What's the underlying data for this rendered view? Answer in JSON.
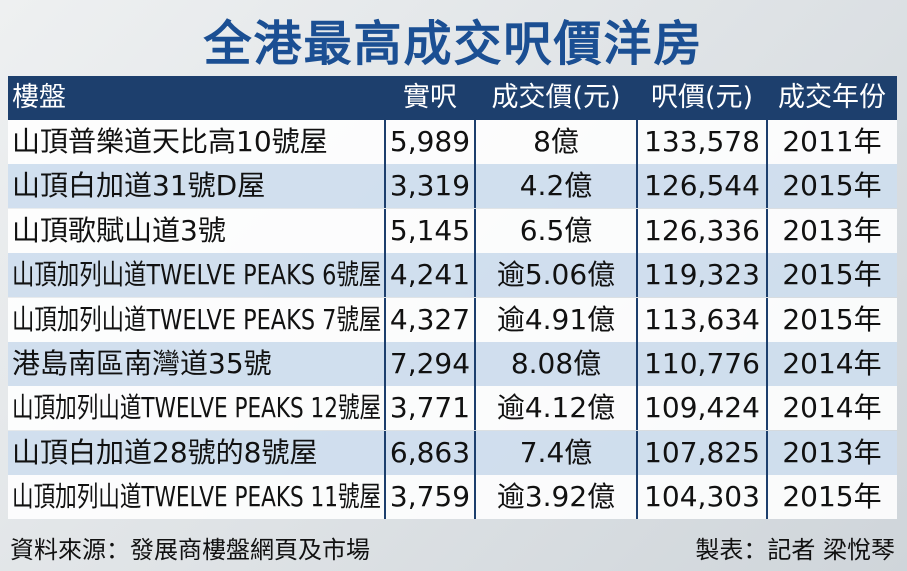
{
  "header": {
    "title": "全港最高成交呎價洋房"
  },
  "table": {
    "columns": [
      "樓盤",
      "實呎",
      "成交價(元)",
      "呎價(元)",
      "成交年份"
    ],
    "rows": [
      [
        "山頂普樂道天比高10號屋",
        "5,989",
        "8億",
        "133,578",
        "2011年"
      ],
      [
        "山頂白加道31號D屋",
        "3,319",
        "4.2億",
        "126,544",
        "2015年"
      ],
      [
        "山頂歌賦山道3號",
        "5,145",
        "6.5億",
        "126,336",
        "2013年"
      ],
      [
        "山頂加列山道TWELVE PEAKS 6號屋",
        "4,241",
        "逾5.06億",
        "119,323",
        "2015年"
      ],
      [
        "山頂加列山道TWELVE PEAKS 7號屋",
        "4,327",
        "逾4.91億",
        "113,634",
        "2015年"
      ],
      [
        "港島南區南灣道35號",
        "7,294",
        "8.08億",
        "110,776",
        "2014年"
      ],
      [
        "山頂加列山道TWELVE PEAKS 12號屋",
        "3,771",
        "逾4.12億",
        "109,424",
        "2014年"
      ],
      [
        "山頂白加道28號的8號屋",
        "6,863",
        "7.4億",
        "107,825",
        "2013年"
      ],
      [
        "山頂加列山道TWELVE PEAKS 11號屋",
        "3,759",
        "逾3.92億",
        "104,303",
        "2015年"
      ]
    ]
  },
  "footer": {
    "source": "資料來源：發展商樓盤網頁及市場",
    "author": "製表：記者 梁悅琴"
  }
}
